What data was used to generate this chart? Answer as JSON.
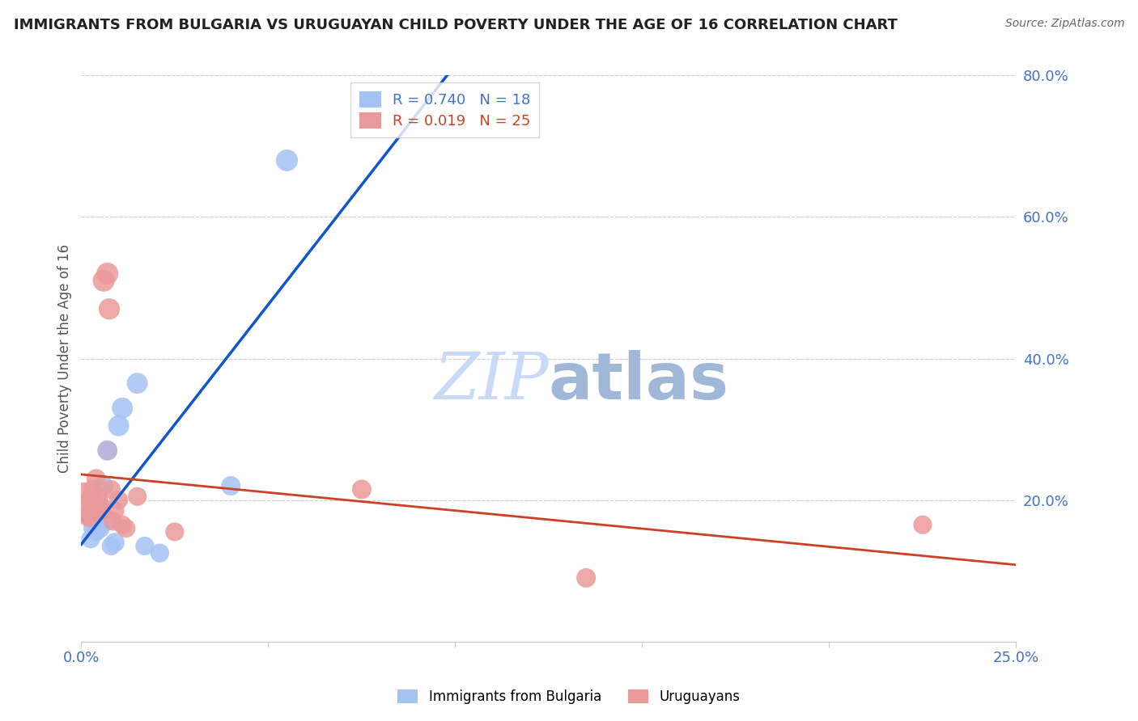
{
  "title": "IMMIGRANTS FROM BULGARIA VS URUGUAYAN CHILD POVERTY UNDER THE AGE OF 16 CORRELATION CHART",
  "source": "Source: ZipAtlas.com",
  "ylabel": "Child Poverty Under the Age of 16",
  "xlim": [
    0.0,
    25.0
  ],
  "ylim": [
    0.0,
    80.0
  ],
  "yticks_right": [
    20.0,
    40.0,
    60.0,
    80.0
  ],
  "xticks": [
    0.0,
    5.0,
    10.0,
    15.0,
    20.0,
    25.0
  ],
  "xtick_labels": [
    "0.0%",
    "",
    "",
    "",
    "",
    "25.0%"
  ],
  "legend1_r": "0.740",
  "legend1_n": "18",
  "legend2_r": "0.019",
  "legend2_n": "25",
  "blue_color": "#a4c2f4",
  "pink_color": "#ea9999",
  "purple_color": "#b4a7d6",
  "blue_line_color": "#1155cc",
  "pink_line_color": "#cc4125",
  "dash_color": "#aaaaaa",
  "watermark_color": "#c9daf8",
  "blue_scatter_x": [
    0.15,
    0.25,
    0.3,
    0.35,
    0.4,
    0.5,
    0.55,
    0.6,
    0.7,
    0.8,
    0.9,
    1.0,
    1.1,
    1.5,
    1.7,
    2.1,
    4.0,
    5.5
  ],
  "blue_scatter_y": [
    18.0,
    14.5,
    16.0,
    17.5,
    15.5,
    16.0,
    19.0,
    22.0,
    17.0,
    13.5,
    14.0,
    30.5,
    33.0,
    36.5,
    13.5,
    12.5,
    22.0,
    68.0
  ],
  "blue_sizes": [
    300,
    280,
    260,
    300,
    280,
    300,
    280,
    300,
    280,
    280,
    300,
    350,
    350,
    350,
    280,
    280,
    300,
    380
  ],
  "pink_scatter_x": [
    0.05,
    0.1,
    0.15,
    0.2,
    0.25,
    0.3,
    0.35,
    0.4,
    0.45,
    0.5,
    0.55,
    0.6,
    0.7,
    0.75,
    0.8,
    0.85,
    0.9,
    1.0,
    1.1,
    1.2,
    1.5,
    2.5,
    7.5,
    13.5,
    22.5
  ],
  "pink_scatter_y": [
    21.0,
    19.5,
    18.0,
    17.5,
    20.0,
    21.5,
    19.0,
    23.0,
    20.5,
    19.5,
    18.5,
    51.0,
    52.0,
    47.0,
    21.5,
    17.0,
    18.5,
    20.0,
    16.5,
    16.0,
    20.5,
    15.5,
    21.5,
    9.0,
    16.5
  ],
  "pink_sizes": [
    350,
    300,
    300,
    280,
    300,
    280,
    280,
    300,
    280,
    280,
    280,
    380,
    380,
    360,
    280,
    280,
    280,
    280,
    280,
    280,
    280,
    280,
    300,
    300,
    280
  ],
  "purple_scatter_x": [
    0.7
  ],
  "purple_scatter_y": [
    27.0
  ],
  "purple_sizes": [
    320
  ]
}
